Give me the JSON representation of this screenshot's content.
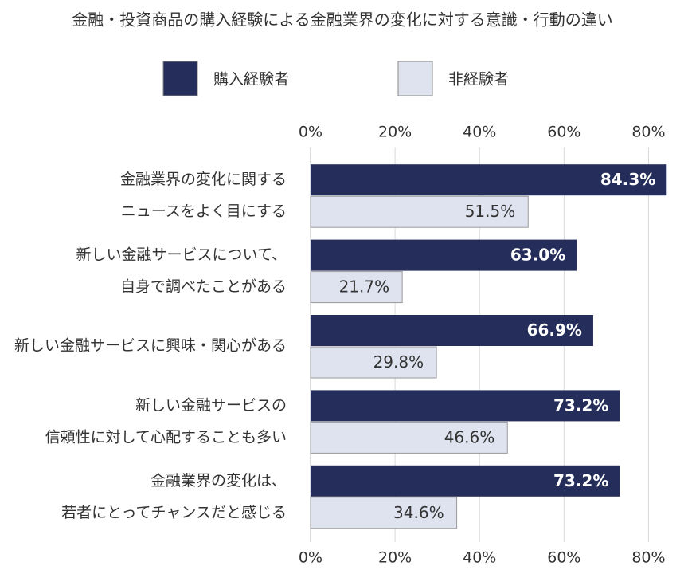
{
  "chart_data": {
    "type": "bar",
    "orientation": "horizontal",
    "title": "金融・投資商品の購入経験による金融業界の変化に対する意識・行動の違い",
    "categories": [
      [
        "金融業界の変化に関する",
        "ニュースをよく目にする"
      ],
      [
        "新しい金融サービスについて、",
        "自身で調べたことがある"
      ],
      [
        "新しい金融サービスに興味・関心がある"
      ],
      [
        "新しい金融サービスの",
        "信頼性に対して心配することも多い"
      ],
      [
        "金融業界の変化は、",
        "若者にとってチャンスだと感じる"
      ]
    ],
    "series": [
      {
        "name": "購入経験者",
        "color": "#252d5a",
        "values": [
          84.3,
          63.0,
          66.9,
          73.2,
          73.2
        ],
        "value_labels": [
          "84.3%",
          "63.0%",
          "66.9%",
          "73.2%",
          "73.2%"
        ]
      },
      {
        "name": "非経験者",
        "color": "#dfe3f0",
        "values": [
          51.5,
          21.7,
          29.8,
          46.6,
          34.6
        ],
        "value_labels": [
          "51.5%",
          "21.7%",
          "29.8%",
          "46.6%",
          "34.6%"
        ]
      }
    ],
    "xlim": [
      0,
      85
    ],
    "xticks": [
      {
        "value": 0,
        "label": "0%"
      },
      {
        "value": 20,
        "label": "20%"
      },
      {
        "value": 40,
        "label": "40%"
      },
      {
        "value": 60,
        "label": "60%"
      },
      {
        "value": 80,
        "label": "80%"
      }
    ],
    "grid": true,
    "legend": "top"
  }
}
